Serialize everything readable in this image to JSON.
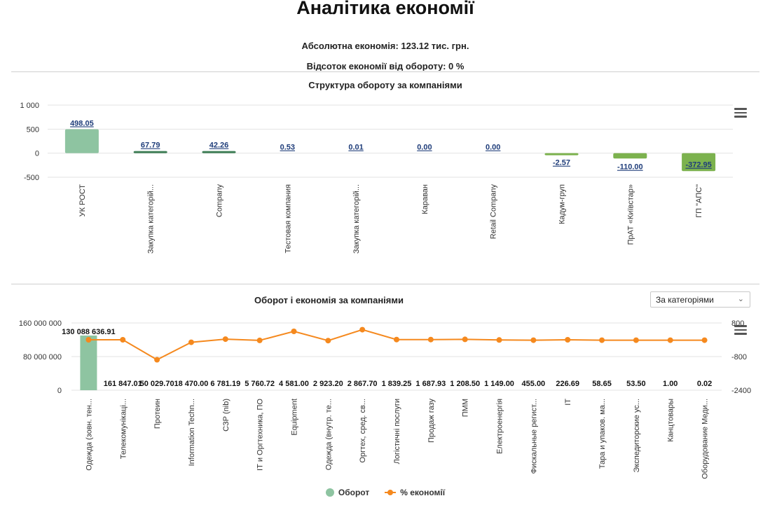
{
  "page": {
    "title": "Аналітика економії",
    "abs_economy": "Абсолютна економія: 123.12 тис. грн.",
    "pct_economy": "Відсоток економії від обороту: 0 %"
  },
  "colors": {
    "bar_positive": "#8ec4a1",
    "bar_dark": "#3d7d55",
    "bar_negative": "#7cb24e",
    "line": "#f5891e",
    "label": "#1f3d7a"
  },
  "icons": {
    "menu": "hamburger-menu-icon",
    "dropdown": "chevron-down-icon"
  },
  "chart_data": [
    {
      "type": "bar",
      "title": "Структура обороту за компаніями",
      "categories": [
        "УК РОСТ",
        "Закупка категорій...",
        "Company",
        "Тестовая компания",
        "Закупка категорій...",
        "Караван",
        "Retail Company",
        "Кадум-груп",
        "ПрАТ «Київстар»",
        "ГП \"АПС\""
      ],
      "values": [
        498.05,
        67.79,
        42.26,
        0.53,
        0.01,
        0.0,
        0.0,
        -2.57,
        -110.0,
        -372.95
      ],
      "labels": [
        "498.05",
        "67.79",
        "42.26",
        "0.53",
        "0.01",
        "0.00",
        "0.00",
        "-2.57",
        "-110.00",
        "-372.95"
      ],
      "y_ticks": [
        "1 000",
        "500",
        "0",
        "-500"
      ],
      "ylim": [
        -500,
        1000
      ],
      "grid": true
    },
    {
      "type": "bar+line",
      "title": "Оборот і економія за компаніями",
      "selector": "За категоріями",
      "categories": [
        "Одежда (зовн. тен...",
        "Телекомунікаці...",
        "Протеин",
        "Information Techn...",
        "СЗР (nib)",
        "ІТ и Оргтехника, ПО",
        "Equipment",
        "Одежда (внутр. те...",
        "Оргтех, сред. св...",
        "Логістичні послуги",
        "Продаж газу",
        "ПММ",
        "Електроенергія",
        "Фискальные регист...",
        "ІТ",
        "Тара и упаков. ма...",
        "Экспедиторские ус...",
        "Канцтовары",
        "Оборудование Меди..."
      ],
      "series": [
        {
          "name": "Оборот",
          "type": "bar",
          "values": [
            130088636.91,
            161847.01,
            50029.7,
            18470.0,
            6781.19,
            5760.72,
            4581.0,
            2923.2,
            2867.7,
            1839.25,
            1687.93,
            1208.5,
            1149.0,
            455.0,
            226.69,
            58.65,
            53.5,
            1.0,
            0.02
          ],
          "labels": [
            "130 088 636.91",
            "161 847.01",
            "50 029.70",
            "18 470.00",
            "6 781.19",
            "5 760.72",
            "4 581.00",
            "2 923.20",
            "2 867.70",
            "1 839.25",
            "1 687.93",
            "1 208.50",
            "1 149.00",
            "455.00",
            "226.69",
            "58.65",
            "53.50",
            "1.00",
            "0.02"
          ]
        },
        {
          "name": "% економії",
          "type": "line",
          "values": [
            0,
            0,
            -950,
            -120,
            30,
            -30,
            400,
            -40,
            480,
            10,
            10,
            20,
            -10,
            -20,
            0,
            -20,
            -20,
            -20,
            -20
          ]
        }
      ],
      "y_ticks": [
        "160 000 000",
        "80 000 000",
        "0"
      ],
      "ylim": [
        0,
        160000000
      ],
      "y2_ticks": [
        "800",
        "-800",
        "-2400"
      ],
      "y2lim": [
        -2400,
        800
      ],
      "legend_position": "bottom-center",
      "grid": true
    }
  ]
}
